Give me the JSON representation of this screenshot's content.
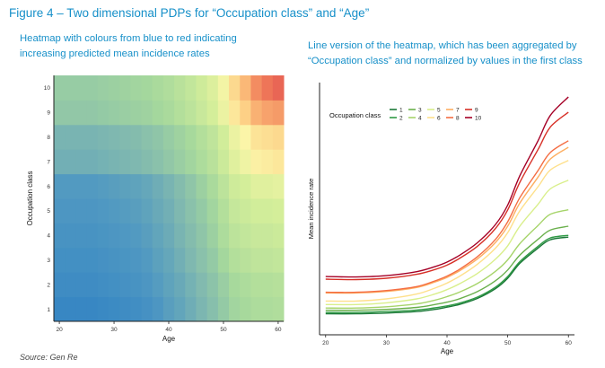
{
  "figure": {
    "title": "Figure 4 – Two dimensional PDPs for “Occupation class” and “Age”",
    "left_subtitle_lines": [
      "Heatmap with colours from blue to red indicating",
      "increasing predicted mean incidence rates"
    ],
    "right_subtitle_lines": [
      "Line version of the heatmap, which has been aggregated by",
      "“Occupation class” and normalized by values in the first class"
    ],
    "source": "Source: Gen Re"
  },
  "colors": {
    "accent": "#1790c9",
    "low": "#2c84c5",
    "mid": "#ffffbf",
    "high": "#d7191c"
  },
  "chart_data": [
    {
      "type": "heatmap",
      "title": "",
      "xlabel": "Age",
      "ylabel": "Occupation class",
      "xlim": [
        19,
        61
      ],
      "xticks": [
        20,
        30,
        40,
        50,
        60
      ],
      "ages": [
        20,
        22,
        24,
        26,
        28,
        30,
        32,
        34,
        36,
        38,
        40,
        42,
        44,
        46,
        48,
        50,
        52,
        54,
        56,
        58,
        60
      ],
      "classes": [
        1,
        2,
        3,
        4,
        5,
        6,
        7,
        8,
        9,
        10
      ],
      "value_scale": "predicted mean incidence rate (0 = low/blue, 1 = high/red)",
      "values": [
        [
          0.05,
          0.05,
          0.05,
          0.05,
          0.06,
          0.07,
          0.08,
          0.09,
          0.11,
          0.14,
          0.18,
          0.21,
          0.25,
          0.29,
          0.33,
          0.38,
          0.43,
          0.45,
          0.47,
          0.47,
          0.48
        ],
        [
          0.08,
          0.08,
          0.08,
          0.08,
          0.09,
          0.1,
          0.11,
          0.12,
          0.14,
          0.17,
          0.2,
          0.23,
          0.27,
          0.31,
          0.35,
          0.4,
          0.45,
          0.47,
          0.49,
          0.49,
          0.5
        ],
        [
          0.1,
          0.1,
          0.1,
          0.1,
          0.11,
          0.12,
          0.13,
          0.14,
          0.16,
          0.19,
          0.22,
          0.26,
          0.3,
          0.34,
          0.38,
          0.44,
          0.49,
          0.51,
          0.53,
          0.53,
          0.54
        ],
        [
          0.12,
          0.12,
          0.12,
          0.12,
          0.13,
          0.14,
          0.15,
          0.16,
          0.18,
          0.21,
          0.24,
          0.28,
          0.32,
          0.36,
          0.41,
          0.47,
          0.52,
          0.54,
          0.56,
          0.56,
          0.57
        ],
        [
          0.14,
          0.14,
          0.14,
          0.14,
          0.15,
          0.16,
          0.17,
          0.18,
          0.2,
          0.23,
          0.26,
          0.3,
          0.34,
          0.38,
          0.43,
          0.49,
          0.55,
          0.57,
          0.59,
          0.59,
          0.6
        ],
        [
          0.16,
          0.16,
          0.16,
          0.16,
          0.17,
          0.18,
          0.19,
          0.2,
          0.22,
          0.25,
          0.28,
          0.32,
          0.36,
          0.41,
          0.46,
          0.52,
          0.58,
          0.6,
          0.63,
          0.63,
          0.64
        ],
        [
          0.26,
          0.26,
          0.26,
          0.26,
          0.27,
          0.28,
          0.29,
          0.3,
          0.32,
          0.34,
          0.37,
          0.4,
          0.43,
          0.47,
          0.51,
          0.57,
          0.63,
          0.67,
          0.71,
          0.72,
          0.73
        ],
        [
          0.28,
          0.28,
          0.28,
          0.28,
          0.29,
          0.3,
          0.31,
          0.32,
          0.34,
          0.36,
          0.39,
          0.42,
          0.45,
          0.49,
          0.53,
          0.59,
          0.66,
          0.7,
          0.74,
          0.75,
          0.76
        ],
        [
          0.37,
          0.37,
          0.37,
          0.37,
          0.38,
          0.39,
          0.4,
          0.41,
          0.42,
          0.44,
          0.46,
          0.49,
          0.52,
          0.56,
          0.6,
          0.66,
          0.73,
          0.78,
          0.83,
          0.85,
          0.86
        ],
        [
          0.39,
          0.39,
          0.39,
          0.39,
          0.4,
          0.41,
          0.42,
          0.43,
          0.44,
          0.46,
          0.48,
          0.51,
          0.54,
          0.58,
          0.62,
          0.68,
          0.76,
          0.82,
          0.88,
          0.91,
          0.93
        ]
      ]
    },
    {
      "type": "line",
      "title": "",
      "xlabel": "Age",
      "ylabel": "Mean incidence rate",
      "xlim": [
        19,
        61
      ],
      "ylim": [
        0,
        1
      ],
      "xticks": [
        20,
        30,
        40,
        50,
        60
      ],
      "legend_title": "Occupation class",
      "legend_position": "top-left",
      "x": [
        20,
        25,
        30,
        35,
        38,
        40,
        42,
        45,
        48,
        50,
        52,
        55,
        57,
        60
      ],
      "series": [
        {
          "name": "1",
          "color": "#1a7837",
          "values": [
            0.01,
            0.01,
            0.013,
            0.02,
            0.03,
            0.04,
            0.052,
            0.08,
            0.125,
            0.172,
            0.24,
            0.31,
            0.348,
            0.36
          ]
        },
        {
          "name": "2",
          "color": "#2f9a45",
          "values": [
            0.016,
            0.016,
            0.02,
            0.027,
            0.037,
            0.046,
            0.058,
            0.086,
            0.132,
            0.18,
            0.248,
            0.318,
            0.356,
            0.368
          ]
        },
        {
          "name": "3",
          "color": "#6ab04c",
          "values": [
            0.026,
            0.026,
            0.03,
            0.039,
            0.052,
            0.063,
            0.078,
            0.111,
            0.161,
            0.21,
            0.278,
            0.35,
            0.392,
            0.41
          ]
        },
        {
          "name": "4",
          "color": "#a6d46a",
          "values": [
            0.036,
            0.036,
            0.042,
            0.055,
            0.072,
            0.088,
            0.108,
            0.148,
            0.204,
            0.256,
            0.33,
            0.413,
            0.464,
            0.485
          ]
        },
        {
          "name": "5",
          "color": "#d9ef8b",
          "values": [
            0.052,
            0.052,
            0.06,
            0.078,
            0.1,
            0.12,
            0.146,
            0.194,
            0.26,
            0.32,
            0.41,
            0.51,
            0.58,
            0.62
          ]
        },
        {
          "name": "6",
          "color": "#fee08b",
          "values": [
            0.068,
            0.068,
            0.078,
            0.1,
            0.127,
            0.15,
            0.18,
            0.236,
            0.31,
            0.38,
            0.48,
            0.59,
            0.666,
            0.71
          ]
        },
        {
          "name": "7",
          "color": "#fdae61",
          "values": [
            0.105,
            0.105,
            0.112,
            0.13,
            0.155,
            0.176,
            0.205,
            0.26,
            0.336,
            0.41,
            0.515,
            0.634,
            0.716,
            0.77
          ]
        },
        {
          "name": "8",
          "color": "#f46d43",
          "values": [
            0.108,
            0.108,
            0.116,
            0.134,
            0.16,
            0.182,
            0.212,
            0.27,
            0.35,
            0.43,
            0.54,
            0.664,
            0.746,
            0.8
          ]
        },
        {
          "name": "9",
          "color": "#d73027",
          "values": [
            0.168,
            0.166,
            0.172,
            0.19,
            0.212,
            0.232,
            0.262,
            0.318,
            0.4,
            0.484,
            0.61,
            0.76,
            0.862,
            0.93
          ]
        },
        {
          "name": "10",
          "color": "#a50026",
          "values": [
            0.18,
            0.178,
            0.184,
            0.202,
            0.225,
            0.246,
            0.276,
            0.334,
            0.418,
            0.506,
            0.64,
            0.8,
            0.915,
            1.0
          ]
        }
      ]
    }
  ]
}
